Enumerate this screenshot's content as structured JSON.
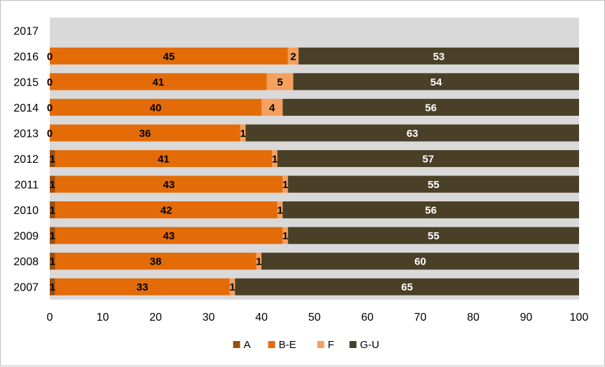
{
  "chart_data": {
    "type": "bar",
    "orientation": "horizontal",
    "stacked": true,
    "categories": [
      "2017",
      "2016",
      "2015",
      "2014",
      "2013",
      "2012",
      "2011",
      "2010",
      "2009",
      "2008",
      "2007"
    ],
    "series": [
      {
        "name": "A",
        "color": "#9c4f0f",
        "labelColor": "#000000",
        "values": [
          null,
          0,
          0,
          0,
          0,
          1,
          1,
          1,
          1,
          1,
          1
        ]
      },
      {
        "name": "B-E",
        "color": "#e36c09",
        "labelColor": "#000000",
        "values": [
          null,
          45,
          41,
          40,
          36,
          41,
          43,
          42,
          43,
          38,
          33
        ]
      },
      {
        "name": "F",
        "color": "#f4a05e",
        "labelColor": "#000000",
        "values": [
          null,
          2,
          5,
          4,
          1,
          1,
          1,
          1,
          1,
          1,
          1
        ]
      },
      {
        "name": "G-U",
        "color": "#4a4028",
        "labelColor": "#ffffff",
        "values": [
          null,
          53,
          54,
          56,
          63,
          57,
          55,
          56,
          55,
          60,
          65
        ]
      }
    ],
    "xlim": [
      0,
      100
    ],
    "xticks": [
      0,
      10,
      20,
      30,
      40,
      50,
      60,
      70,
      80,
      90,
      100
    ],
    "plot_background": "#d9d9d9",
    "legend_position": "bottom",
    "data_labels": true,
    "grid": false
  }
}
